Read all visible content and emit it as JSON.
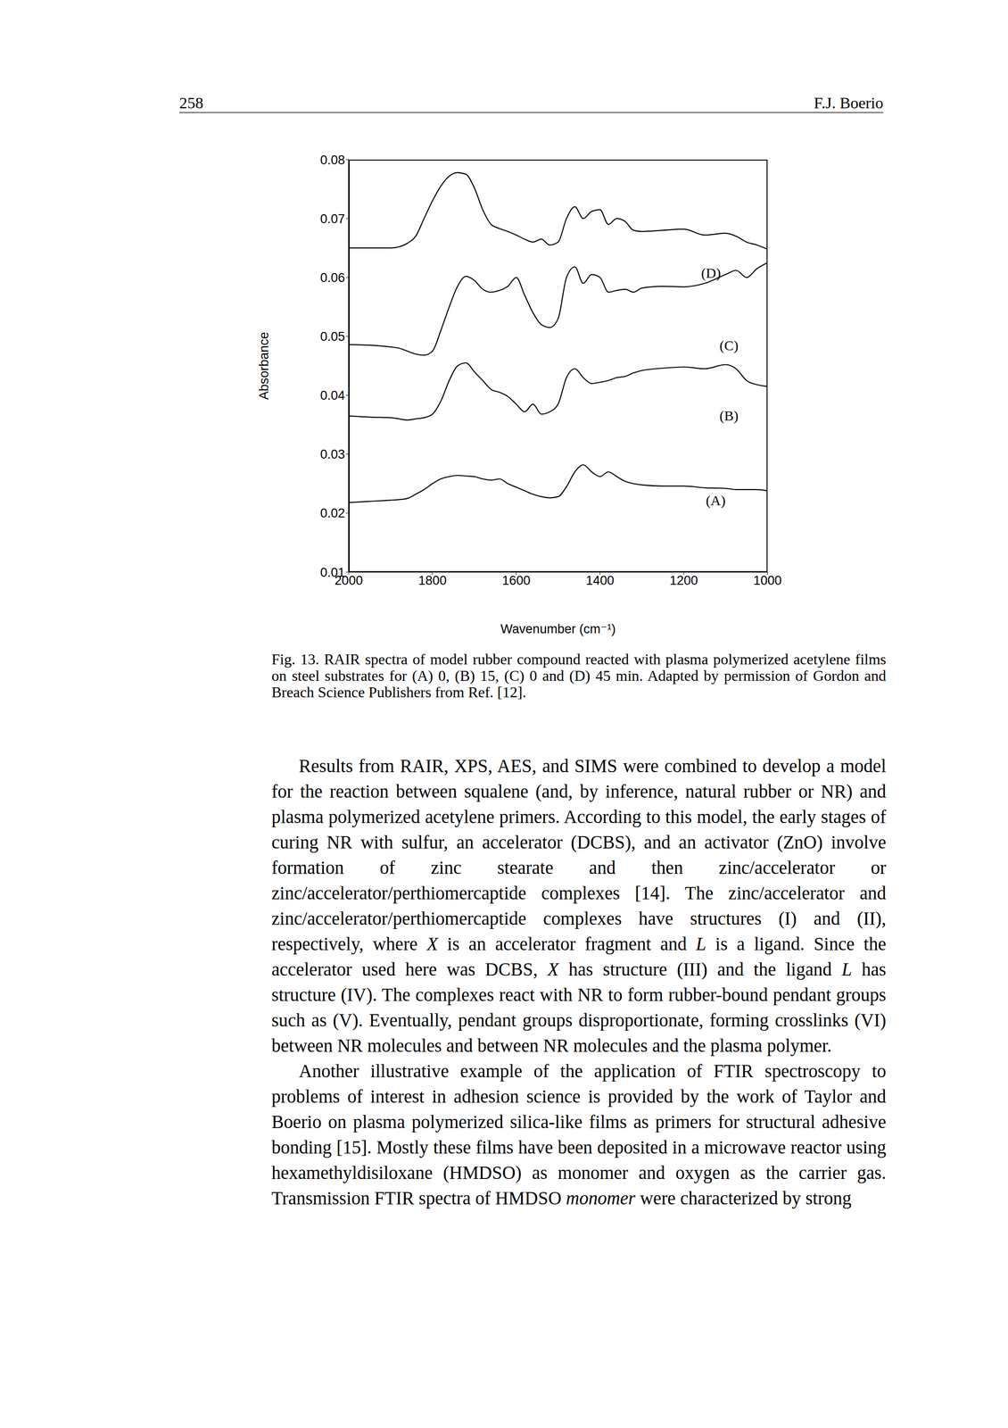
{
  "header": {
    "page_number": "258",
    "author": "F.J. Boerio"
  },
  "chart_data": {
    "type": "line",
    "x_label": "Wavenumber (cm⁻¹)",
    "y_label": "Absorbance",
    "grid": false,
    "x": [
      2000,
      1950,
      1900,
      1880,
      1860,
      1840,
      1820,
      1800,
      1780,
      1760,
      1740,
      1720,
      1700,
      1680,
      1660,
      1640,
      1620,
      1600,
      1580,
      1560,
      1540,
      1520,
      1500,
      1480,
      1460,
      1440,
      1420,
      1400,
      1380,
      1360,
      1340,
      1320,
      1300,
      1250,
      1200,
      1150,
      1100,
      1075,
      1050,
      1025,
      1000
    ],
    "xlim": [
      2000,
      1000
    ],
    "xticks": [
      2000,
      1800,
      1600,
      1400,
      1200,
      1000
    ],
    "ylim": [
      0.01,
      0.08
    ],
    "yticks": [
      0.01,
      0.02,
      0.03,
      0.04,
      0.05,
      0.06,
      0.07,
      0.08
    ],
    "series": [
      {
        "name": "(A)",
        "color": "#000000",
        "values": [
          0.0218,
          0.022,
          0.0222,
          0.0223,
          0.0225,
          0.0232,
          0.024,
          0.025,
          0.0258,
          0.0262,
          0.0264,
          0.0263,
          0.0262,
          0.0258,
          0.0256,
          0.0258,
          0.025,
          0.0244,
          0.0238,
          0.0232,
          0.0228,
          0.0226,
          0.0228,
          0.0245,
          0.027,
          0.0282,
          0.027,
          0.0262,
          0.027,
          0.0262,
          0.0254,
          0.025,
          0.0248,
          0.0246,
          0.0246,
          0.0243,
          0.0242,
          0.024,
          0.024,
          0.024,
          0.0238
        ]
      },
      {
        "name": "(B)",
        "color": "#000000",
        "values": [
          0.0365,
          0.0363,
          0.0362,
          0.036,
          0.0358,
          0.036,
          0.0362,
          0.0368,
          0.039,
          0.0425,
          0.045,
          0.0455,
          0.044,
          0.0425,
          0.041,
          0.0405,
          0.0398,
          0.0385,
          0.0372,
          0.0385,
          0.0368,
          0.0372,
          0.0385,
          0.043,
          0.0445,
          0.043,
          0.042,
          0.0422,
          0.0425,
          0.043,
          0.0432,
          0.0438,
          0.0442,
          0.0446,
          0.0448,
          0.0445,
          0.0452,
          0.0445,
          0.0425,
          0.0418,
          0.0415
        ]
      },
      {
        "name": "(C)",
        "color": "#000000",
        "values": [
          0.0486,
          0.0485,
          0.0482,
          0.048,
          0.0475,
          0.047,
          0.0468,
          0.0475,
          0.051,
          0.055,
          0.0585,
          0.0602,
          0.0595,
          0.058,
          0.0575,
          0.0578,
          0.0585,
          0.06,
          0.057,
          0.054,
          0.052,
          0.0515,
          0.053,
          0.06,
          0.0618,
          0.059,
          0.0605,
          0.06,
          0.0575,
          0.0578,
          0.058,
          0.0575,
          0.0582,
          0.0585,
          0.0584,
          0.059,
          0.0605,
          0.0612,
          0.06,
          0.0615,
          0.0625
        ]
      },
      {
        "name": "(D)",
        "color": "#000000",
        "values": [
          0.065,
          0.065,
          0.065,
          0.0652,
          0.0658,
          0.067,
          0.07,
          0.073,
          0.0755,
          0.0772,
          0.0778,
          0.0775,
          0.0752,
          0.0715,
          0.069,
          0.0683,
          0.0678,
          0.0672,
          0.0665,
          0.066,
          0.0665,
          0.0655,
          0.066,
          0.07,
          0.072,
          0.07,
          0.0712,
          0.0715,
          0.069,
          0.07,
          0.0695,
          0.068,
          0.0678,
          0.068,
          0.0682,
          0.0672,
          0.0675,
          0.067,
          0.066,
          0.0655,
          0.0648
        ]
      }
    ]
  },
  "caption": "Fig. 13. RAIR spectra of model rubber compound reacted with plasma polymerized acetylene films on steel substrates for (A) 0, (B) 15, (C) 0 and (D) 45 min. Adapted by permission of Gordon and Breach Science Publishers from Ref. [12].",
  "paragraphs": [
    [
      {
        "text": "Results from RAIR, XPS, AES, and SIMS were combined to develop a model for the reaction between squalene (and, by inference, natural rubber or NR) and plasma polymerized acetylene primers. According to this model, the early stages of curing NR with sulfur, an accelerator (DCBS), and an activator (ZnO) involve formation of zinc stearate and then zinc/accelerator or zinc/accelerator/perthiomercaptide complexes [14]. The zinc/accelerator and zinc/accelerator/perthiomercaptide complexes have structures (I) and (II), respectively, where ",
        "italic": false
      },
      {
        "text": "X",
        "italic": true
      },
      {
        "text": " is an accelerator fragment and ",
        "italic": false
      },
      {
        "text": "L",
        "italic": true
      },
      {
        "text": " is a ligand. Since the accelerator used here was DCBS, ",
        "italic": false
      },
      {
        "text": "X",
        "italic": true
      },
      {
        "text": " has structure (III) and the ligand ",
        "italic": false
      },
      {
        "text": "L",
        "italic": true
      },
      {
        "text": " has structure (IV). The complexes react with NR to form rubber-bound pendant groups such as (V). Eventually, pendant groups disproportionate, forming crosslinks (VI) between NR molecules and between NR molecules and the plasma polymer.",
        "italic": false
      }
    ],
    [
      {
        "text": "Another illustrative example of the application of FTIR spectroscopy to problems of interest in adhesion science is provided by the work of Taylor and Boerio on plasma polymerized silica-like films as primers for structural adhesive bonding [15]. Mostly these films have been deposited in a microwave reactor using hexamethyldisiloxane (HMDSO) as monomer and oxygen as the carrier gas. Transmission FTIR spectra of HMDSO ",
        "italic": false
      },
      {
        "text": "monomer",
        "italic": true
      },
      {
        "text": " were characterized by strong",
        "italic": false
      }
    ]
  ]
}
